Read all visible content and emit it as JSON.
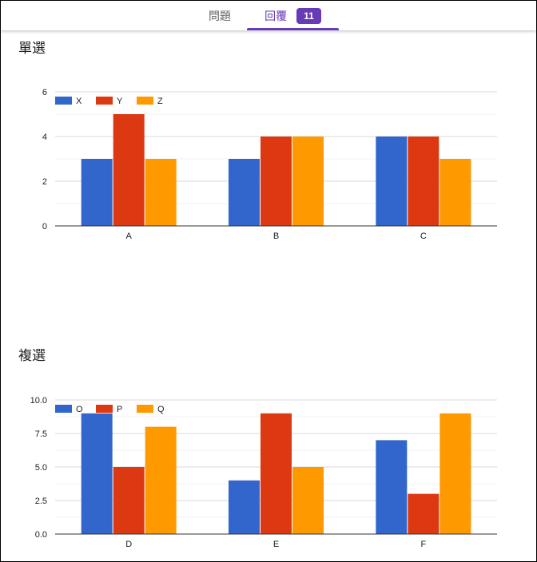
{
  "tabs": {
    "questions_label": "問題",
    "responses_label": "回覆",
    "responses_count": "11"
  },
  "colors": {
    "series1": "#3366cc",
    "series2": "#dc3912",
    "series3": "#ff9900",
    "accent": "#673ab7"
  },
  "chart_data": [
    {
      "type": "bar",
      "title": "單選",
      "categories": [
        "A",
        "B",
        "C"
      ],
      "series": [
        {
          "name": "X",
          "values": [
            3,
            3,
            4
          ]
        },
        {
          "name": "Y",
          "values": [
            5,
            4,
            4
          ]
        },
        {
          "name": "Z",
          "values": [
            3,
            4,
            3
          ]
        }
      ],
      "ylim": [
        0,
        6
      ],
      "yticks": [
        "0",
        "2",
        "4",
        "6"
      ],
      "ytick_values": [
        0,
        2,
        4,
        6
      ],
      "minor_grid_step": 1,
      "legend": "top-left",
      "grid": true
    },
    {
      "type": "bar",
      "title": "複選",
      "categories": [
        "D",
        "E",
        "F"
      ],
      "series": [
        {
          "name": "O",
          "values": [
            9,
            4,
            7
          ]
        },
        {
          "name": "P",
          "values": [
            5,
            9,
            3
          ]
        },
        {
          "name": "Q",
          "values": [
            8,
            5,
            9
          ]
        }
      ],
      "ylim": [
        0,
        10
      ],
      "yticks": [
        "0.0",
        "2.5",
        "5.0",
        "7.5",
        "10.0"
      ],
      "ytick_values": [
        0,
        2.5,
        5,
        7.5,
        10
      ],
      "minor_grid_step": 1.25,
      "legend": "top-left",
      "grid": true
    }
  ]
}
